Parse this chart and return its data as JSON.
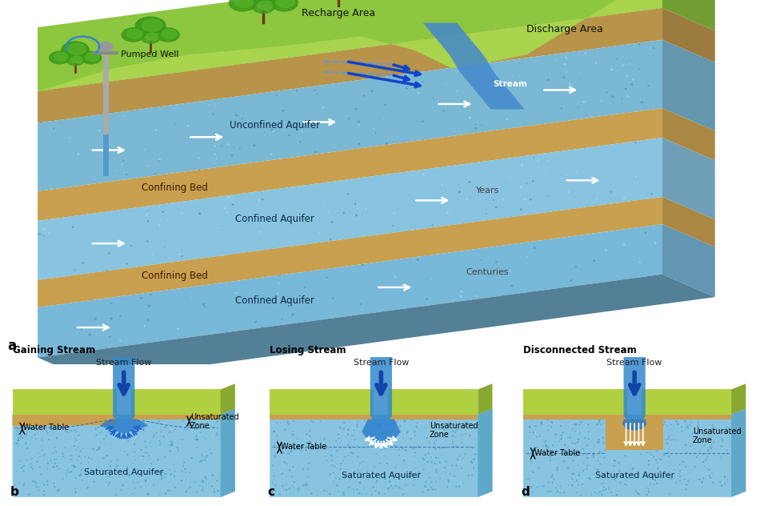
{
  "bg_color": "#ffffff",
  "panel_a": {
    "label": "a",
    "land_color": "#8dc63f",
    "land_color2": "#a8d44e",
    "soil_color": "#b8934a",
    "unconfined_color": "#7ab8d4",
    "confined1_color": "#88c4e0",
    "confined2_color": "#78b8d8",
    "confining_color": "#c8a050",
    "speckle_dark": "#3a88b0",
    "speckle_light": "#aadcf0",
    "stream_color": "#4488cc",
    "arrow_color": "#1155bb",
    "recharge_area": "Recharge Area",
    "discharge_area": "Discharge Area",
    "stream_label": "Stream",
    "pumped_well": "Pumped Well",
    "unconfined_aquifer": "Unconfined Aquifer",
    "confining_bed1": "Confining Bed",
    "confined_aquifer1": "Confined Aquifer",
    "years": "Years",
    "confining_bed2": "Confining Bed",
    "confined_aquifer2": "Confined Aquifer",
    "centuries": "Centuries"
  },
  "panel_b": {
    "label": "b",
    "title": "Gaining Stream",
    "stream_flow": "Stream Flow",
    "water_table": "Water Table",
    "unsaturated_zone": "Unsaturated\nZone",
    "saturated_aquifer": "Saturated Aquifer"
  },
  "panel_c": {
    "label": "c",
    "title": "Losing Stream",
    "stream_flow": "Stream Flow",
    "water_table": "Water Table",
    "unsaturated_zone": "Unsaturated\nZone",
    "saturated_aquifer": "Saturated Aquifer"
  },
  "panel_d": {
    "label": "d",
    "title": "Disconnected Stream",
    "stream_flow": "Stream Flow",
    "water_table": "Water Table",
    "unsaturated_zone": "Unsaturated\nZone",
    "saturated_aquifer": "Saturated Aquifer"
  }
}
